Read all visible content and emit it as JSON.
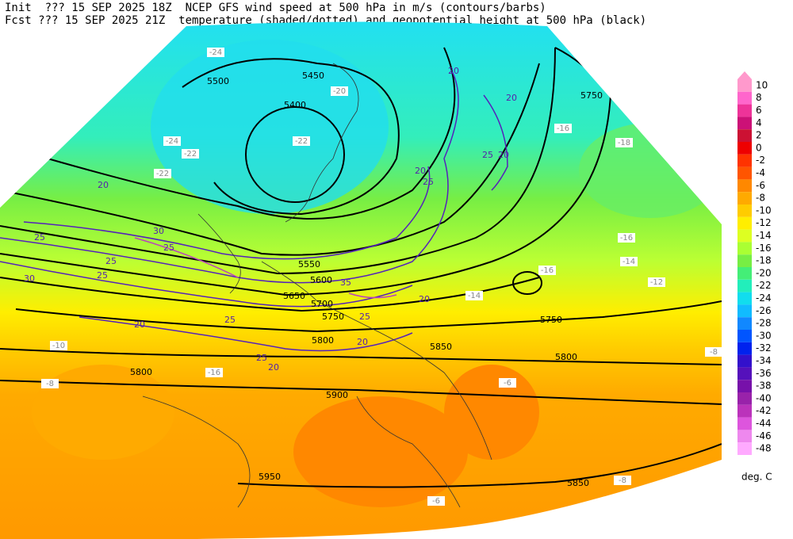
{
  "header": {
    "init_line": "Init  ??? 15 SEP 2025 18Z  NCEP GFS wind speed at 500 hPa in m/s (contours/barbs)",
    "fcst_line": "Fcst ??? 15 SEP 2025 21Z  temperature (shaded/dotted) and geopotential height at 500 hPa (black)"
  },
  "colorbar": {
    "levels": [
      10,
      8,
      6,
      4,
      2,
      0,
      -2,
      -4,
      -6,
      -8,
      -10,
      -12,
      -14,
      -16,
      -18,
      -20,
      -22,
      -24,
      -26,
      -28,
      -30,
      -32,
      -34,
      -36,
      -38,
      -40,
      -42,
      -44,
      -46,
      -48
    ],
    "colors": [
      "#ff99cc",
      "#ff66cc",
      "#ee3399",
      "#cc1177",
      "#cc1133",
      "#ee0000",
      "#ff3300",
      "#ff5500",
      "#ff8800",
      "#ffaa00",
      "#ffcc00",
      "#ffee00",
      "#ddff22",
      "#aaff33",
      "#77ee44",
      "#44ee77",
      "#22eebb",
      "#11ddee",
      "#11bbff",
      "#1188ff",
      "#0055ff",
      "#0022ee",
      "#3311cc",
      "#5511bb",
      "#7711aa",
      "#9922aa",
      "#bb33bb",
      "#dd55dd",
      "#ee88ee",
      "#ffaaff"
    ],
    "unit": "deg. C"
  },
  "height_labels": [
    5450,
    5400,
    5500,
    5750,
    5550,
    5600,
    5650,
    5700,
    5750,
    5800,
    5850,
    5800,
    5800,
    5900,
    5950,
    5850,
    5750
  ],
  "temp_labels": [
    -24,
    -24,
    -22,
    -22,
    -22,
    -20,
    -16,
    -18,
    -16,
    -14,
    -12,
    -16,
    -14,
    -10,
    -8,
    -8,
    -8,
    -6,
    -6,
    -16
  ],
  "wind_labels": [
    20,
    20,
    25,
    30,
    25,
    30,
    25,
    20,
    25,
    25,
    20,
    20,
    35,
    25,
    20,
    25,
    20,
    25,
    20,
    20,
    25
  ]
}
